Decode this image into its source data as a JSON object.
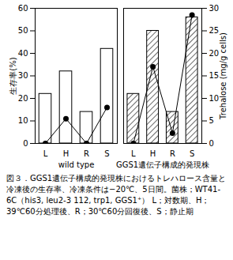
{
  "chart_data": {
    "type": "bar",
    "ylabel": "生存率(%)",
    "y2label": "Trehalose (mg/g cells)",
    "ylim": [
      0,
      60
    ],
    "yticks": [
      0,
      10,
      20,
      30,
      40,
      50,
      60
    ],
    "y2lim": [
      0,
      30
    ],
    "y2ticks": [
      0,
      5,
      10,
      15,
      20,
      25,
      30
    ],
    "caption": "図３．GGS1遺伝子構成的発現株におけるトレハロース含量と冷凍後の生存率、冷凍条件は−20℃、5日間。菌株；WT41-6C（his3, leu2-3 112, trp1, GGS1⁺） L；対数期、H；39℃60分処理後、R；30℃60分回復後、S；静止期",
    "panels": [
      {
        "title": "wild type",
        "categories": [
          "L",
          "H",
          "R",
          "S"
        ],
        "series": [
          {
            "name": "生存率(%)",
            "type": "bar",
            "color": "#ffffff",
            "values": [
              22,
              32,
              14,
              42
            ]
          },
          {
            "name": "Trehalose (mg/g cells)",
            "type": "line",
            "axis": "y2",
            "color": "#000000",
            "marker": "circle",
            "line_style": "solid",
            "values": [
              0,
              5.5,
              0,
              8
            ]
          }
        ]
      },
      {
        "title": "GGS1遺伝子構成的発現株",
        "categories": [
          "L",
          "H",
          "R",
          "S"
        ],
        "series": [
          {
            "name": "生存率(%)",
            "type": "bar",
            "color": "#ffffff",
            "values": [
              22,
              50,
              14,
              56
            ]
          },
          {
            "name": "Trehalose (mg/g cells)",
            "type": "line",
            "axis": "y2",
            "color": "#000000",
            "marker": "circle",
            "line_style": "solid",
            "values": [
              0,
              17,
              2.3,
              28.5
            ]
          }
        ]
      }
    ]
  }
}
